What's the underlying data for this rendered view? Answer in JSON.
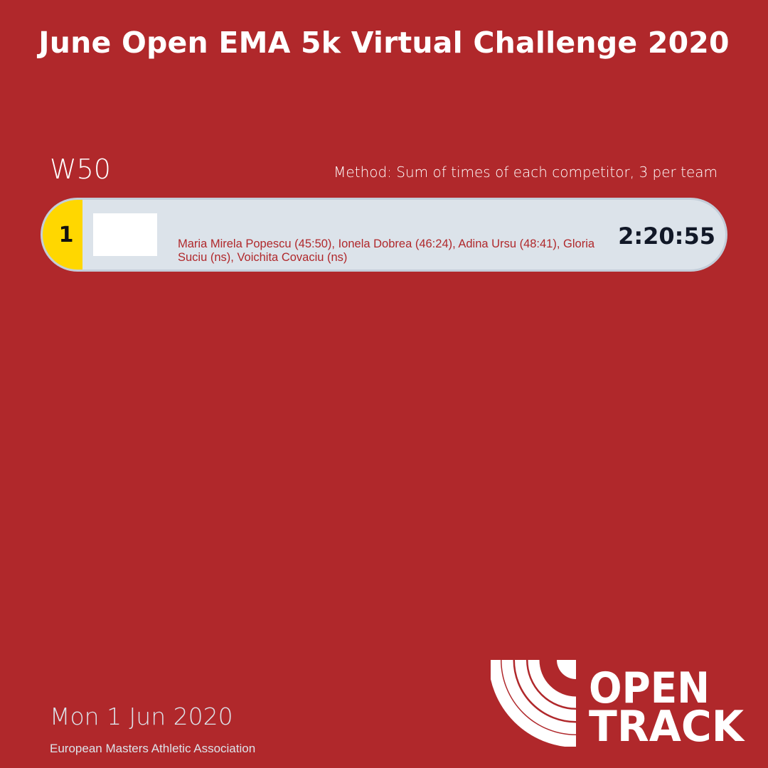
{
  "header": {
    "title": "June Open EMA 5k Virtual Challenge 2020"
  },
  "category": {
    "name": "W50",
    "method": "Method: Sum of times of each competitor, 3 per team"
  },
  "results": [
    {
      "rank": "1",
      "members": "Maria Mirela Popescu (45:50), Ionela Dobrea (46:24), Adina Ursu (48:41), Gloria Suciu (ns), Voichita Covaciu (ns)",
      "time": "2:20:55",
      "rank_color": "#ffd700"
    }
  ],
  "footer": {
    "date": "Mon 1 Jun 2020",
    "organisation": "European Masters Athletic Association",
    "logo_text": "OPEN TRACK"
  },
  "colors": {
    "background": "#b0282b",
    "row": "#dce3ea",
    "gold": "#ffd700"
  }
}
